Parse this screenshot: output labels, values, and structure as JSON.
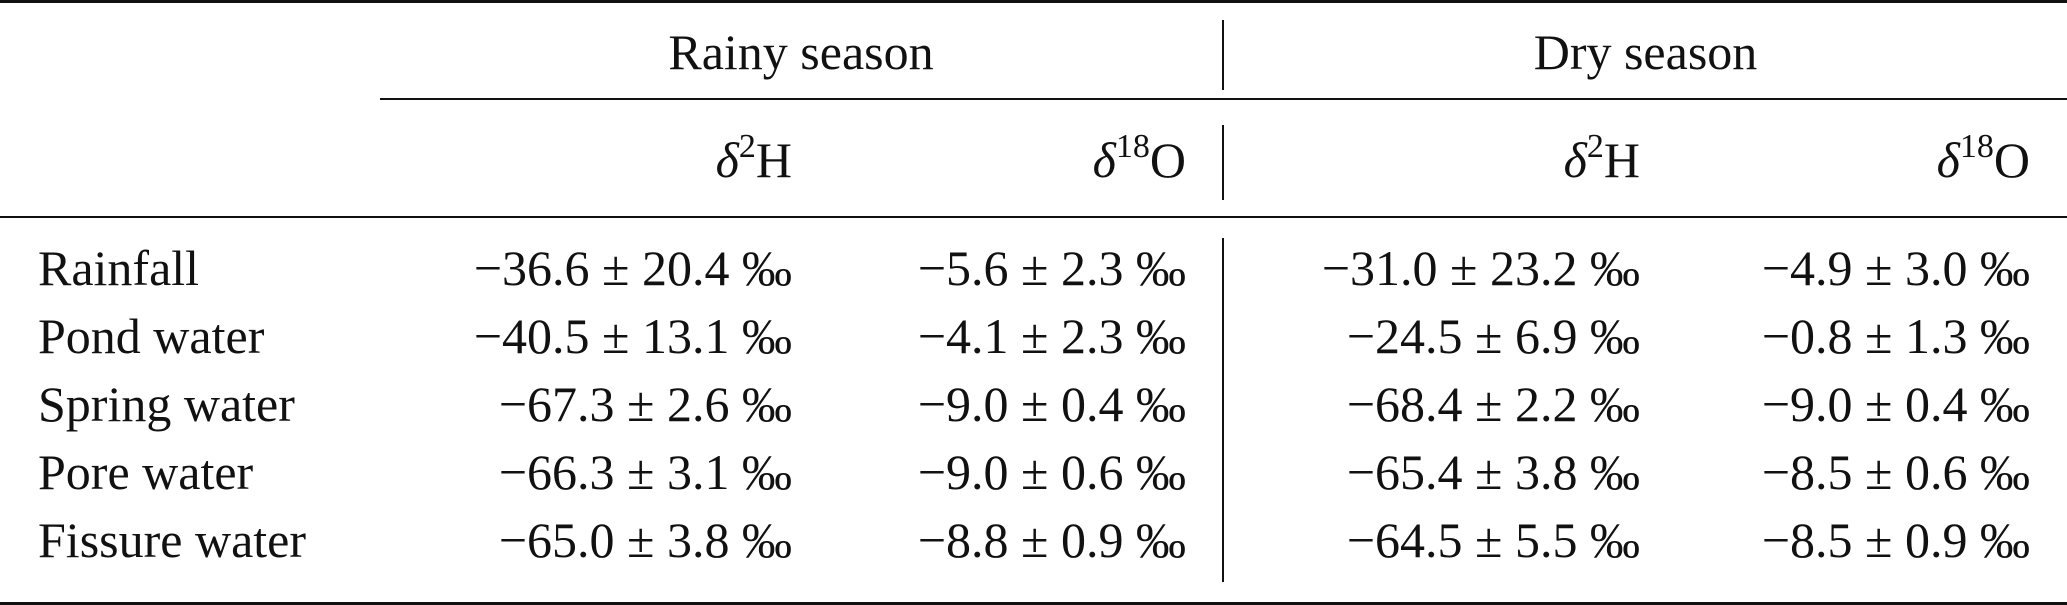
{
  "table": {
    "groups": [
      {
        "label": "Rainy season"
      },
      {
        "label": "Dry season"
      }
    ],
    "subheaders": [
      {
        "symbol": "δ",
        "mass": "2",
        "element": "H"
      },
      {
        "symbol": "δ",
        "mass": "18",
        "element": "O"
      },
      {
        "symbol": "δ",
        "mass": "2",
        "element": "H"
      },
      {
        "symbol": "δ",
        "mass": "18",
        "element": "O"
      }
    ],
    "rows": [
      {
        "label": "Rainfall",
        "values": [
          "−36.6 ± 20.4 ‰",
          "−5.6 ± 2.3 ‰",
          "−31.0 ± 23.2 ‰",
          "−4.9 ± 3.0 ‰"
        ]
      },
      {
        "label": "Pond water",
        "values": [
          "−40.5 ± 13.1 ‰",
          "−4.1 ± 2.3 ‰",
          "−24.5 ± 6.9 ‰",
          "−0.8 ± 1.3 ‰"
        ]
      },
      {
        "label": "Spring water",
        "values": [
          "−67.3 ± 2.6 ‰",
          "−9.0 ± 0.4 ‰",
          "−68.4 ± 2.2 ‰",
          "−9.0 ± 0.4 ‰"
        ]
      },
      {
        "label": "Pore water",
        "values": [
          "−66.3 ± 3.1 ‰",
          "−9.0 ± 0.6 ‰",
          "−65.4 ± 3.8 ‰",
          "−8.5 ± 0.6 ‰"
        ]
      },
      {
        "label": "Fissure water",
        "values": [
          "−65.0 ± 3.8 ‰",
          "−8.8 ± 0.9 ‰",
          "−64.5 ± 5.5 ‰",
          "−8.5 ± 0.9 ‰"
        ]
      }
    ]
  }
}
